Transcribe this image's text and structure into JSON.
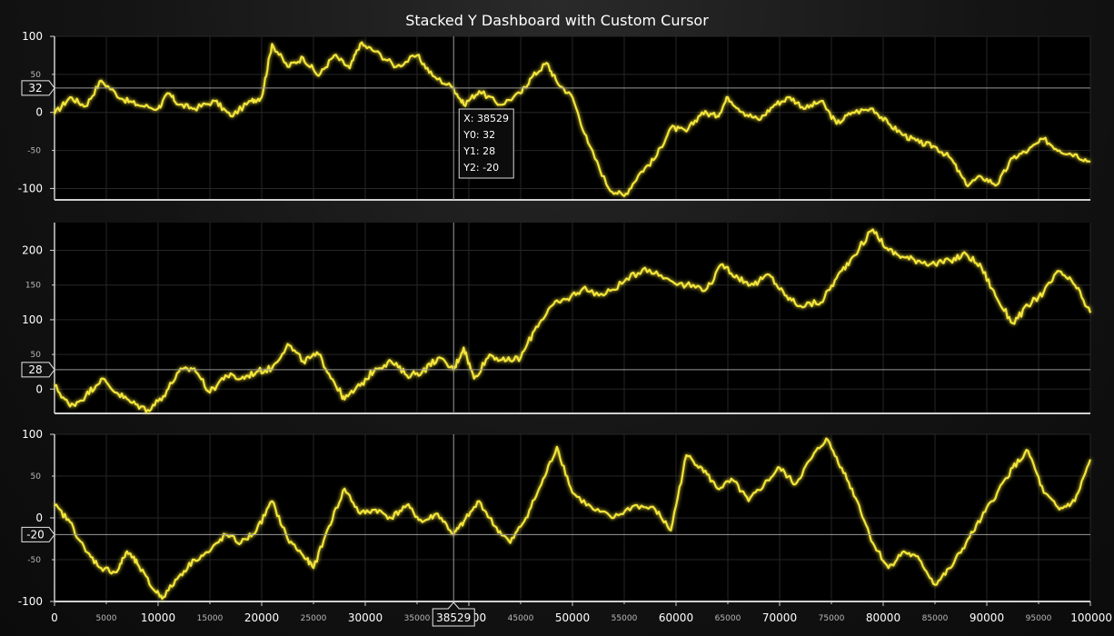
{
  "title": "Stacked Y Dashboard with Custom Cursor",
  "colors": {
    "series": "#f3e53a",
    "glow": "#fff35a",
    "panel_bg": "#000000",
    "grid": "#262626",
    "axis": "#d0d0d0",
    "cursor": "#9a9a9a"
  },
  "cursor": {
    "x": 38529,
    "x_label": "38529",
    "y_labels": [
      "32",
      "28",
      "-20"
    ],
    "tooltip": [
      "X: 38529",
      "Y0: 32",
      "Y1: 28",
      "Y2: -20"
    ]
  },
  "x_axis": {
    "range": [
      0,
      100000
    ],
    "major_ticks": [
      0,
      10000,
      20000,
      30000,
      40000,
      50000,
      60000,
      70000,
      80000,
      90000,
      100000
    ],
    "major_labels": [
      "0",
      "10000",
      "20000",
      "30000",
      "40000",
      "50000",
      "60000",
      "70000",
      "80000",
      "90000",
      "100000"
    ],
    "minor_ticks": [
      5000,
      15000,
      25000,
      35000,
      45000,
      55000,
      65000,
      75000,
      85000,
      95000
    ],
    "minor_labels": [
      "5000",
      "15000",
      "25000",
      "35000",
      "45000",
      "55000",
      "65000",
      "75000",
      "85000",
      "95000"
    ]
  },
  "chart_data": [
    {
      "type": "line",
      "name": "Y0",
      "ylim": [
        -115,
        100
      ],
      "y_major_ticks": [
        100,
        0,
        -100
      ],
      "y_major_labels": [
        "100",
        "0",
        "-100"
      ],
      "y_minor_ticks": [
        50,
        -50
      ],
      "y_minor_labels": [
        "50",
        "-50"
      ],
      "x": [
        0,
        1500,
        3000,
        4500,
        6500,
        8000,
        10000,
        11000,
        12000,
        13500,
        15500,
        17000,
        19000,
        20000,
        21000,
        22500,
        24000,
        25500,
        27000,
        28500,
        29500,
        31000,
        33000,
        35000,
        36500,
        38529,
        39500,
        41000,
        43000,
        45000,
        46000,
        47500,
        48500,
        50000,
        51500,
        53500,
        55000,
        56500,
        58000,
        59500,
        61000,
        62500,
        64000,
        65000,
        66500,
        68000,
        69500,
        71000,
        72500,
        74000,
        75500,
        77000,
        79000,
        80500,
        82000,
        83500,
        85000,
        86500,
        88000,
        89500,
        91000,
        92500,
        94000,
        95500,
        97000,
        98500,
        100000
      ],
      "y": [
        -2,
        20,
        8,
        42,
        18,
        10,
        5,
        25,
        10,
        5,
        15,
        -5,
        15,
        20,
        90,
        60,
        72,
        48,
        75,
        58,
        90,
        80,
        60,
        75,
        48,
        32,
        10,
        28,
        10,
        25,
        45,
        65,
        40,
        20,
        -40,
        -100,
        -110,
        -80,
        -60,
        -20,
        -25,
        0,
        -5,
        20,
        0,
        -10,
        10,
        20,
        5,
        15,
        -15,
        0,
        5,
        -15,
        -30,
        -40,
        -45,
        -60,
        -95,
        -85,
        -95,
        -60,
        -50,
        -35,
        -50,
        -55,
        -65
      ]
    },
    {
      "type": "line",
      "name": "Y1",
      "ylim": [
        -35,
        240
      ],
      "y_major_ticks": [
        200,
        100,
        0
      ],
      "y_major_labels": [
        "200",
        "100",
        "0"
      ],
      "y_minor_ticks": [
        150,
        50
      ],
      "y_minor_labels": [
        "150",
        "50"
      ],
      "x": [
        0,
        1500,
        3000,
        4500,
        6000,
        7500,
        9000,
        10500,
        12000,
        13500,
        15000,
        16500,
        18000,
        19500,
        21000,
        22500,
        24000,
        25500,
        27000,
        28000,
        29500,
        31000,
        32500,
        34000,
        35500,
        37000,
        38529,
        39500,
        40500,
        42000,
        43500,
        45000,
        46500,
        48000,
        49500,
        51000,
        53000,
        55000,
        57000,
        59000,
        61000,
        63000,
        64500,
        66000,
        67500,
        69000,
        70500,
        72000,
        74000,
        75500,
        77000,
        79000,
        80500,
        82000,
        83500,
        85000,
        86500,
        88000,
        89500,
        91000,
        92500,
        94000,
        95500,
        97000,
        98500,
        100000
      ],
      "y": [
        5,
        -25,
        -10,
        15,
        -5,
        -20,
        -30,
        -10,
        25,
        30,
        -5,
        20,
        15,
        25,
        30,
        65,
        40,
        50,
        10,
        -15,
        5,
        30,
        40,
        20,
        25,
        45,
        28,
        60,
        15,
        50,
        40,
        45,
        90,
        120,
        130,
        145,
        135,
        155,
        175,
        160,
        150,
        145,
        180,
        160,
        150,
        165,
        135,
        120,
        125,
        160,
        190,
        230,
        200,
        190,
        185,
        180,
        185,
        195,
        175,
        130,
        95,
        120,
        140,
        170,
        150,
        110
      ]
    },
    {
      "type": "line",
      "name": "Y2",
      "ylim": [
        -100,
        100
      ],
      "y_major_ticks": [
        100,
        0,
        -100
      ],
      "y_major_labels": [
        "100",
        "0",
        "-100"
      ],
      "y_minor_ticks": [
        50,
        -50
      ],
      "y_minor_labels": [
        "50",
        "-50"
      ],
      "x": [
        0,
        1500,
        3000,
        4500,
        6000,
        7000,
        8000,
        9500,
        10500,
        12000,
        13500,
        15000,
        16500,
        18000,
        19500,
        21000,
        22500,
        24000,
        25000,
        26500,
        28000,
        29500,
        31000,
        32500,
        34000,
        35500,
        37000,
        38529,
        39500,
        41000,
        42500,
        44000,
        45500,
        47000,
        48500,
        50000,
        52000,
        54000,
        56000,
        58000,
        59500,
        61000,
        62500,
        64000,
        65500,
        67000,
        68500,
        70000,
        71500,
        73000,
        74500,
        76000,
        77500,
        79000,
        80500,
        82000,
        83500,
        85000,
        86500,
        88000,
        89500,
        91000,
        92500,
        94000,
        95500,
        97000,
        98500,
        100000
      ],
      "y": [
        15,
        -5,
        -40,
        -60,
        -65,
        -40,
        -55,
        -85,
        -95,
        -70,
        -50,
        -40,
        -20,
        -30,
        -15,
        20,
        -25,
        -45,
        -60,
        -10,
        35,
        5,
        10,
        0,
        15,
        -5,
        5,
        -20,
        -5,
        20,
        -10,
        -30,
        0,
        40,
        85,
        30,
        10,
        0,
        15,
        10,
        -15,
        75,
        60,
        35,
        45,
        20,
        40,
        60,
        40,
        70,
        95,
        60,
        20,
        -30,
        -60,
        -40,
        -50,
        -80,
        -60,
        -30,
        0,
        30,
        60,
        80,
        30,
        10,
        20,
        70
      ]
    }
  ]
}
